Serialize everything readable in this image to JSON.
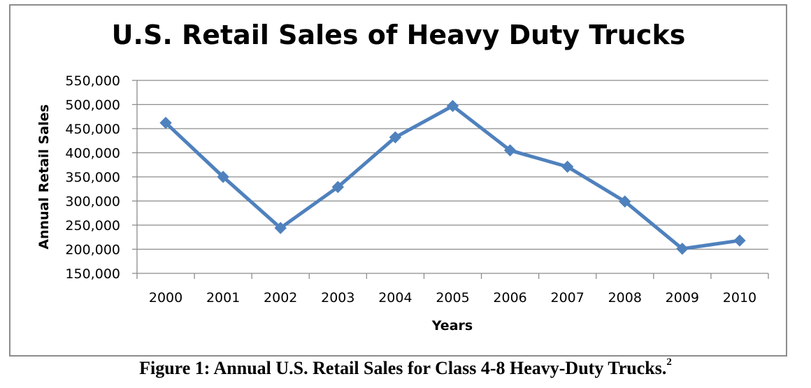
{
  "chart_data": {
    "type": "line",
    "title": "U.S. Retail Sales of Heavy Duty Trucks",
    "xlabel": "Years",
    "ylabel": "Annual Retail Sales",
    "categories": [
      "2000",
      "2001",
      "2002",
      "2003",
      "2004",
      "2005",
      "2006",
      "2007",
      "2008",
      "2009",
      "2010"
    ],
    "series": [
      {
        "name": "Annual Retail Sales",
        "values": [
          462000,
          350000,
          244000,
          329000,
          432000,
          497000,
          405000,
          371000,
          299000,
          201000,
          218000
        ],
        "color": "#4f81bd",
        "marker": "diamond"
      }
    ],
    "ylim": [
      150000,
      550000
    ],
    "ytick_values": [
      150000,
      200000,
      250000,
      300000,
      350000,
      400000,
      450000,
      500000,
      550000
    ],
    "ytick_labels": [
      "150,000",
      "200,000",
      "250,000",
      "300,000",
      "350,000",
      "400,000",
      "450,000",
      "500,000",
      "550,000"
    ],
    "grid": true,
    "legend": "none"
  },
  "caption": {
    "text": "Figure 1: Annual U.S. Retail Sales for Class 4-8 Heavy-Duty Trucks.",
    "footnote": "2"
  },
  "colors": {
    "series": "#4f81bd",
    "gridline": "#8c8c8c",
    "frame": "#8c8c8c"
  }
}
